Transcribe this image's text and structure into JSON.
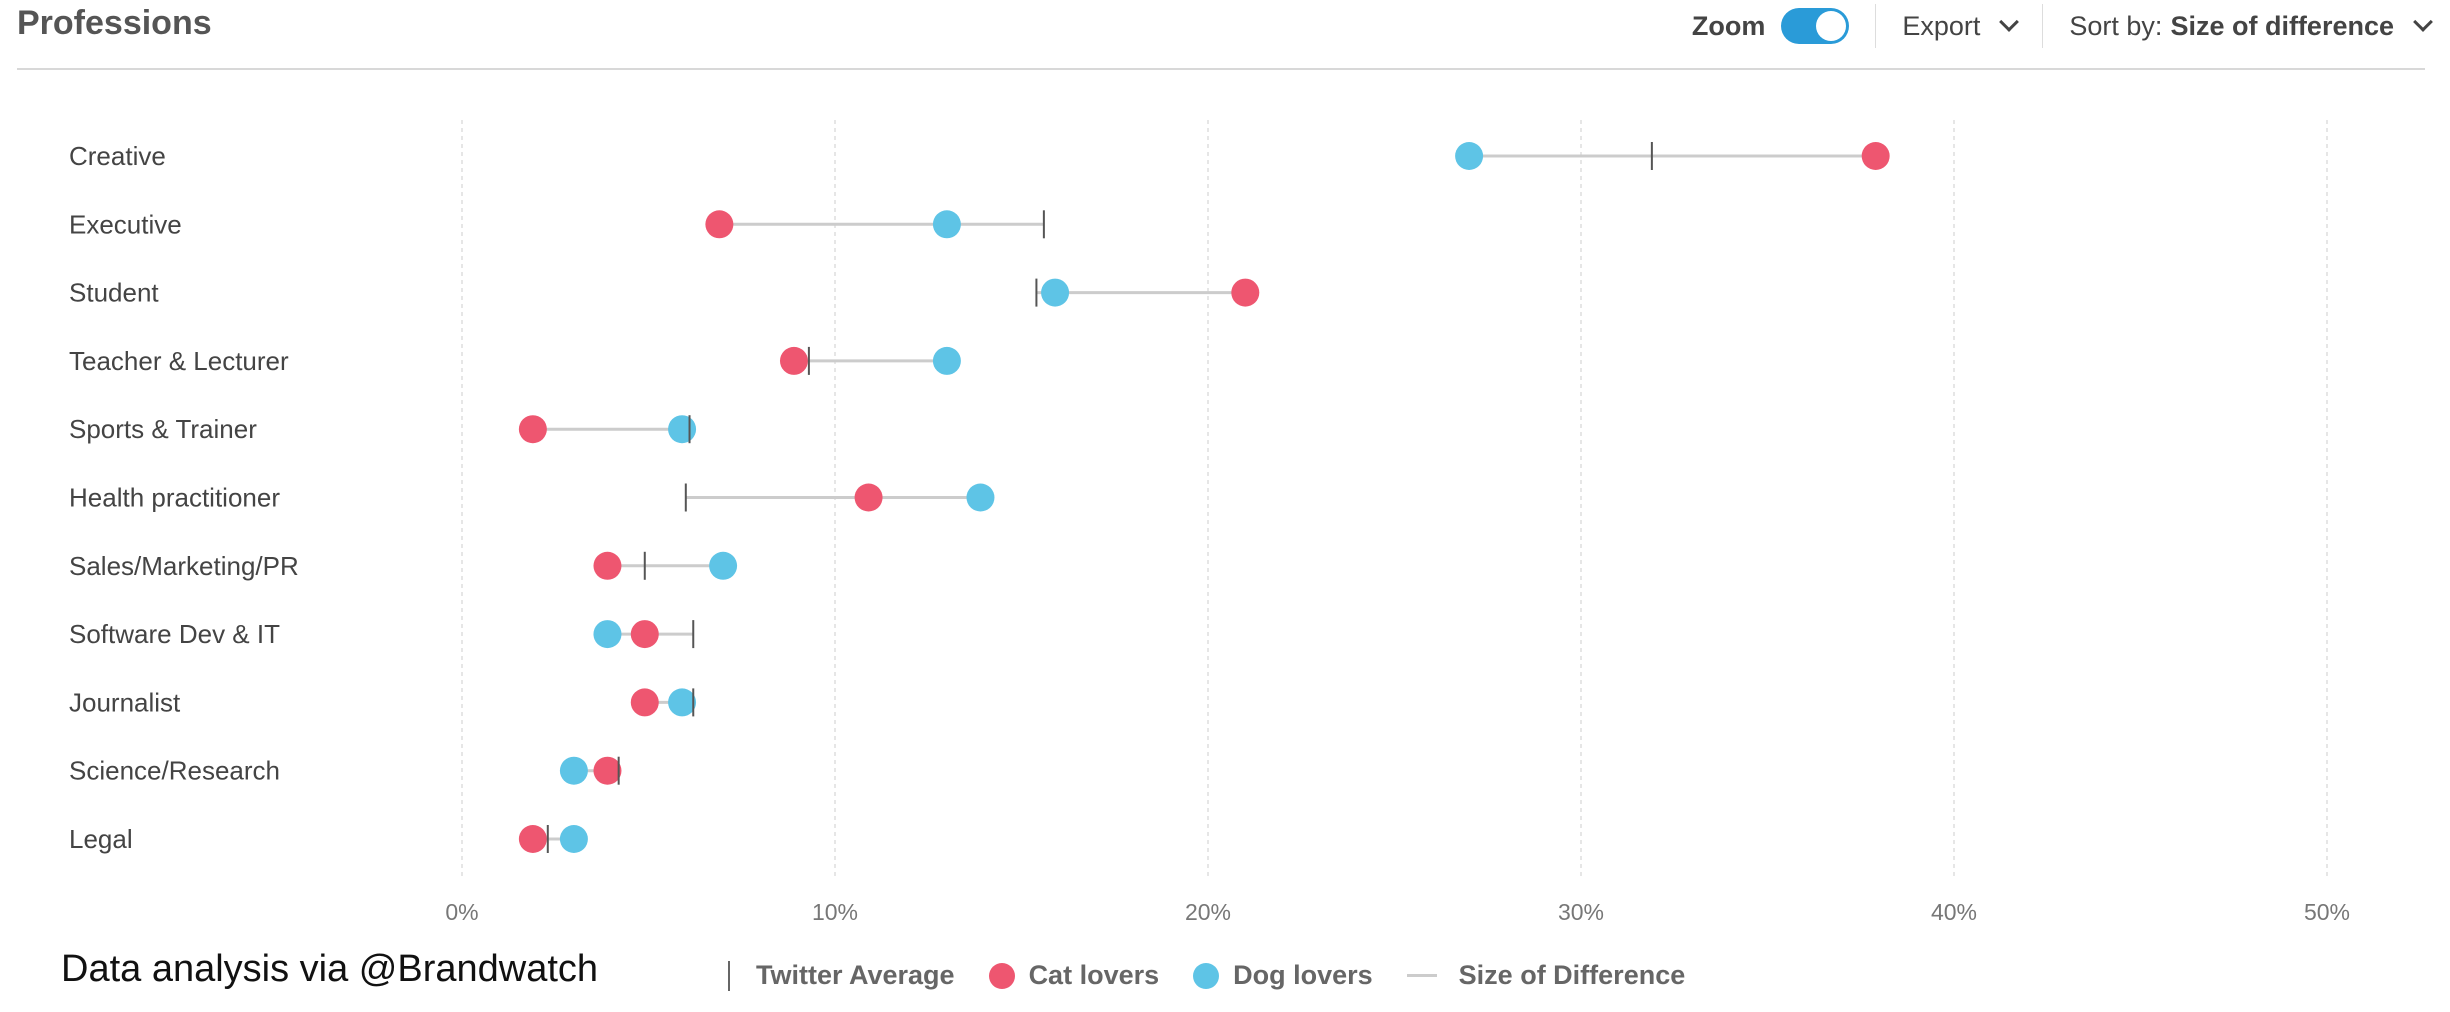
{
  "header": {
    "title": "Professions",
    "zoom_label": "Zoom",
    "zoom_on": true,
    "export_label": "Export",
    "sort_prefix": "Sort by:",
    "sort_value": "Size of difference"
  },
  "footer": {
    "credit": "Data analysis via @Brandwatch"
  },
  "colors": {
    "cat": "#ee5670",
    "dog": "#5ec4e6",
    "avg": "#555555",
    "diff": "#cccccc",
    "toggle": "#2a9bd8"
  },
  "chart_data": {
    "type": "dumbbell",
    "title": "Professions",
    "xlim": [
      0,
      50
    ],
    "x_ticks": [
      0,
      10,
      20,
      30,
      40,
      50
    ],
    "x_tick_labels": [
      "0%",
      "10%",
      "20%",
      "30%",
      "40%",
      "50%"
    ],
    "grid": true,
    "legend": [
      "Twitter Average",
      "Cat lovers",
      "Dog lovers",
      "Size of Difference"
    ],
    "legend_position": "bottom",
    "categories": [
      "Creative",
      "Executive",
      "Student",
      "Teacher & Lecturer",
      "Sports & Trainer",
      "Health practitioner",
      "Sales/Marketing/PR",
      "Software Dev & IT",
      "Journalist",
      "Science/Research",
      "Legal"
    ],
    "series": [
      {
        "name": "Cat lovers",
        "values": [
          37.9,
          6.9,
          21.0,
          8.9,
          1.9,
          10.9,
          3.9,
          4.9,
          4.9,
          3.9,
          1.9
        ]
      },
      {
        "name": "Dog lovers",
        "values": [
          27.0,
          13.0,
          15.9,
          13.0,
          5.9,
          13.9,
          7.0,
          3.9,
          5.9,
          3.0,
          3.0
        ]
      },
      {
        "name": "Twitter Average",
        "values": [
          31.9,
          15.6,
          15.4,
          9.3,
          6.1,
          6.0,
          4.9,
          6.2,
          6.2,
          4.2,
          2.3
        ]
      }
    ]
  }
}
